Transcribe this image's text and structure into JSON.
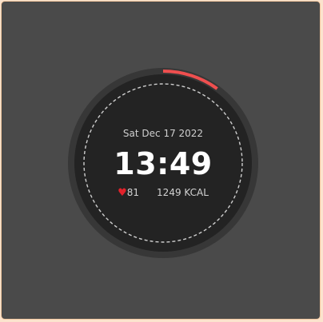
{
  "watch": {
    "date": "Sat Dec 17 2022",
    "time": "13:49",
    "heart_rate": "81",
    "calories": "1249 KCAL",
    "progress_fraction": 0.1,
    "colors": {
      "background": "#4a4a4a",
      "bezel": "#373737",
      "face": "#232323",
      "progress": "#ef4f4f",
      "heart": "#e2222b",
      "dashed_ring": "#cfcfcf"
    },
    "icons": {
      "heart": "heart-icon"
    }
  }
}
